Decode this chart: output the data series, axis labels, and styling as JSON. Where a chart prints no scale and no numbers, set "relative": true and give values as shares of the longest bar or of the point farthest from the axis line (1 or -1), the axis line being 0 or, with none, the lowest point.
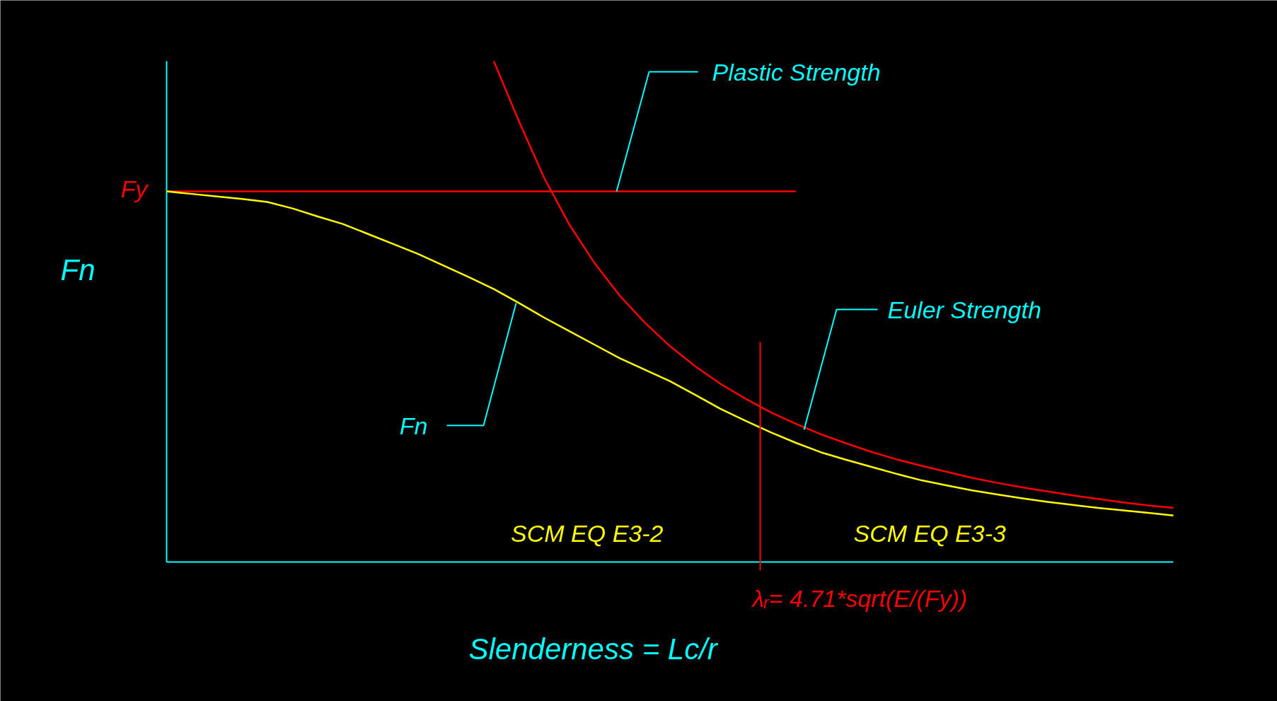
{
  "chart_data": {
    "type": "line",
    "relative": true,
    "xlabel": "Slenderness = Lc/r",
    "ylabel": "Fn",
    "categories": [
      null,
      null,
      null,
      null,
      null,
      null,
      null,
      null,
      null,
      null,
      null,
      null,
      null,
      null,
      null,
      null,
      null,
      null,
      null,
      null,
      null,
      null,
      null,
      null,
      null,
      null,
      null,
      null,
      null,
      null,
      null,
      null,
      null,
      null,
      null,
      null,
      null,
      null,
      null,
      null,
      null
    ],
    "series": [
      {
        "color": "#ff0000",
        "values": [
          0.74,
          0.74,
          0.74,
          0.74,
          0.74,
          0.74,
          0.74,
          0.74,
          0.74,
          0.74,
          0.74,
          0.74,
          0.74,
          0.74,
          0.74,
          0.74,
          0.74,
          0.74,
          0.74,
          0.74,
          0.74,
          0.74,
          0.74,
          0.74,
          0.74,
          0.74,
          null,
          null,
          null,
          null,
          null,
          null,
          null,
          null,
          null,
          null,
          null,
          null,
          null,
          null,
          null
        ]
      },
      {
        "color": "#ff0000",
        "values": [
          null,
          null,
          null,
          null,
          null,
          null,
          null,
          null,
          null,
          null,
          null,
          null,
          null,
          1.0,
          0.88,
          0.767,
          0.674,
          0.597,
          0.532,
          0.478,
          0.431,
          0.391,
          0.356,
          0.326,
          0.299,
          0.276,
          0.255,
          0.237,
          0.22,
          0.205,
          0.192,
          0.18,
          0.168,
          0.158,
          0.149,
          0.141,
          0.133,
          0.126,
          0.119,
          0.113,
          0.108
        ]
      },
      {
        "color": "#ffff00",
        "values": [
          0.74,
          0.735,
          0.73,
          0.725,
          0.719,
          0.706,
          0.69,
          0.675,
          0.655,
          0.635,
          0.615,
          0.592,
          0.569,
          0.545,
          0.517,
          0.488,
          0.461,
          0.434,
          0.407,
          0.384,
          0.361,
          0.334,
          0.306,
          0.282,
          0.259,
          0.238,
          0.219,
          0.204,
          0.19,
          0.176,
          0.163,
          0.153,
          0.143,
          0.135,
          0.127,
          0.12,
          0.114,
          0.108,
          0.103,
          0.098,
          0.093
        ]
      }
    ],
    "annotations": [
      "Plastic Strength",
      "Euler Strength",
      "Fn",
      "Fy",
      "SCM EQ E3-2",
      "SCM EQ E3-3",
      "λᵣ= 4.71*sqrt(E/(Fy))"
    ]
  }
}
